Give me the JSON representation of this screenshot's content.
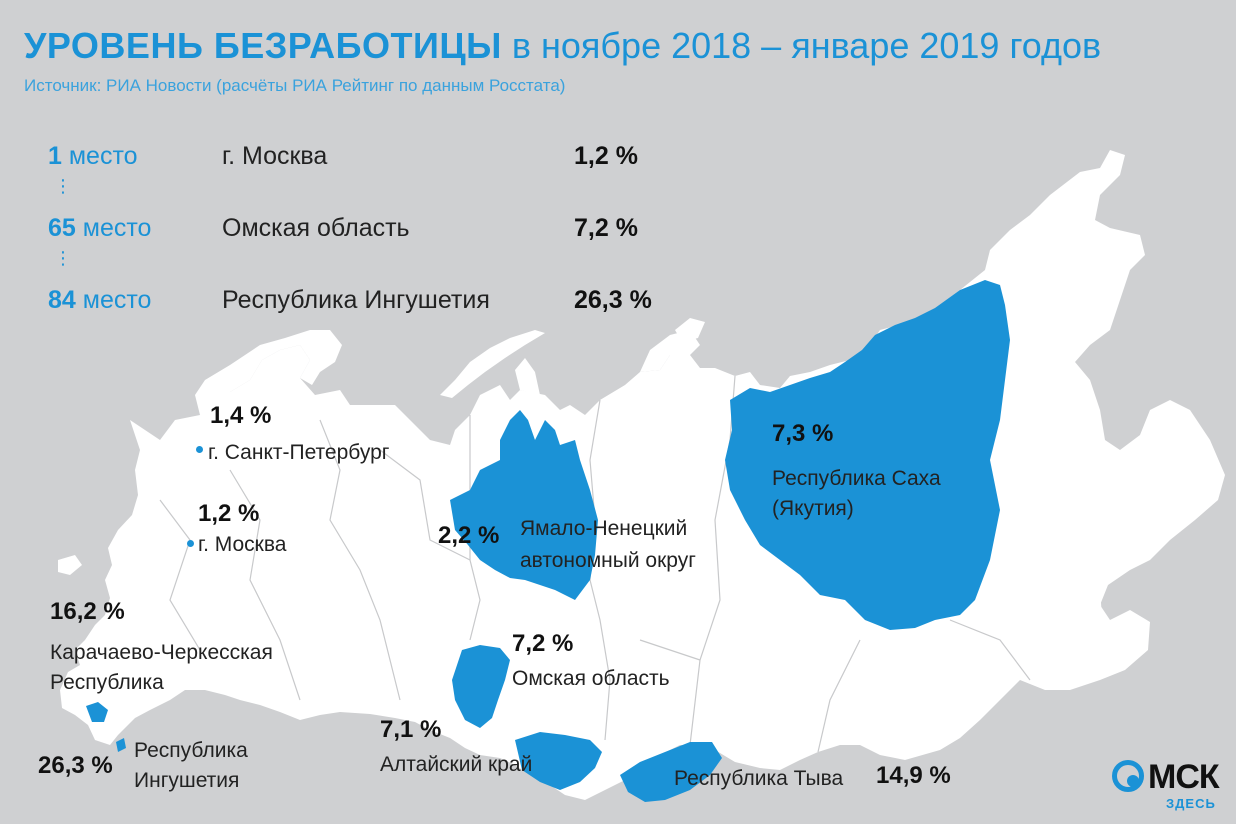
{
  "header": {
    "title_bold": "УРОВЕНЬ БЕЗРАБОТИЦЫ",
    "title_rest": "в ноябре 2018 – январе 2019 годов",
    "source": "Источник: РИА Новости (расчёты РИА Рейтинг по данным Росстата)"
  },
  "ranking": [
    {
      "num": "1",
      "word": "место",
      "region": "г. Москва",
      "value": "1,2 %"
    },
    {
      "num": "65",
      "word": "место",
      "region": "Омская область",
      "value": "7,2 %"
    },
    {
      "num": "84",
      "word": "место",
      "region": "Республика Ингушетия",
      "value": "26,3 %"
    }
  ],
  "ranking_separator": "⋮",
  "map": {
    "colors": {
      "land": "#ffffff",
      "highlight": "#1b92d6",
      "background": "#cfd0d2",
      "borders": "#c8c9cb"
    },
    "labels": {
      "spb_value": "1,4 %",
      "spb_name": "г. Санкт-Петербург",
      "msk_value": "1,2 %",
      "msk_name": "г. Москва",
      "kchr_value": "16,2 %",
      "kchr_name_1": "Карачаево-Черкесская",
      "kchr_name_2": "Республика",
      "ing_value": "26,3 %",
      "ing_name_1": "Республика",
      "ing_name_2": "Ингушетия",
      "yanao_value": "2,2 %",
      "yanao_name_1": "Ямало-Ненецкий",
      "yanao_name_2": "автономный округ",
      "omsk_value": "7,2 %",
      "omsk_name": "Омская область",
      "altai_value": "7,1 %",
      "altai_name": "Алтайский край",
      "tyva_name": "Республика Тыва",
      "tyva_value": "14,9 %",
      "sakha_value": "7,3 %",
      "sakha_name_1": "Республика Саха",
      "sakha_name_2": "(Якутия)"
    }
  },
  "logo": {
    "main": "МСК",
    "sub": "ЗДЕСЬ"
  }
}
